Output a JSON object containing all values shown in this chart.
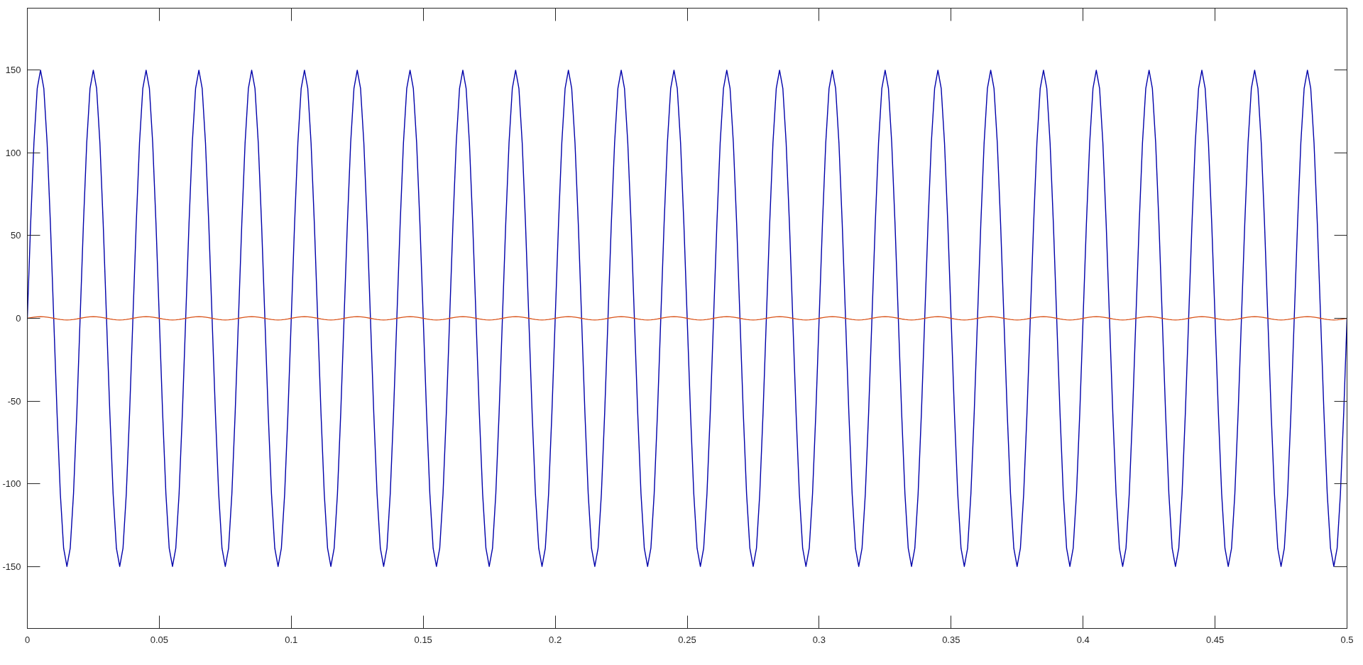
{
  "chart_data": {
    "type": "line",
    "xlim": [
      0,
      0.5
    ],
    "xticks": [
      0,
      0.05,
      0.1,
      0.15,
      0.2,
      0.25,
      0.3,
      0.35,
      0.4,
      0.45,
      0.5
    ],
    "ylim": [
      -187.5,
      187.5
    ],
    "yticks": [
      -150,
      -100,
      -50,
      0,
      50,
      100,
      150
    ],
    "grid": false,
    "line_style": "solid",
    "x": [
      0,
      0.00125,
      0.0025,
      0.00375,
      0.005,
      0.00625,
      0.0075,
      0.00875,
      0.01,
      0.01125,
      0.0125,
      0.01375,
      0.015,
      0.01625,
      0.0175,
      0.01875,
      0.02,
      0.02125,
      0.0225,
      0.02375,
      0.025,
      0.02625,
      0.0275,
      0.02875,
      0.03,
      0.03125,
      0.0325,
      0.03375,
      0.035,
      0.03625,
      0.0375,
      0.03875,
      0.04,
      0.04125,
      0.0425,
      0.04375,
      0.045,
      0.04625,
      0.0475,
      0.04875,
      0.05,
      0.05125,
      0.0525,
      0.05375,
      0.055,
      0.05625,
      0.0575,
      0.05875,
      0.06,
      0.06125,
      0.0625,
      0.06375,
      0.065,
      0.06625,
      0.0675,
      0.06875,
      0.07,
      0.07125,
      0.0725,
      0.07375,
      0.075,
      0.07625,
      0.0775,
      0.07875,
      0.08,
      0.08125,
      0.0825,
      0.08375,
      0.085,
      0.08625,
      0.0875,
      0.08875,
      0.09,
      0.09125,
      0.0925,
      0.09375,
      0.095,
      0.09625,
      0.0975,
      0.09875,
      0.1,
      0.10125,
      0.1025,
      0.10375,
      0.105,
      0.10625,
      0.1075,
      0.10875,
      0.11,
      0.11125,
      0.1125,
      0.11375,
      0.115,
      0.11625,
      0.1175,
      0.11875,
      0.12,
      0.12125,
      0.1225,
      0.12375,
      0.125,
      0.12625,
      0.1275,
      0.12875,
      0.13,
      0.13125,
      0.1325,
      0.13375,
      0.135,
      0.13625,
      0.1375,
      0.13875,
      0.14,
      0.14125,
      0.1425,
      0.14375,
      0.145,
      0.14625,
      0.1475,
      0.14875,
      0.15,
      0.15125,
      0.1525,
      0.15375,
      0.155,
      0.15625,
      0.1575,
      0.15875,
      0.16,
      0.16125,
      0.1625,
      0.16375,
      0.165,
      0.16625,
      0.1675,
      0.16875,
      0.17,
      0.17125,
      0.1725,
      0.17375,
      0.175,
      0.17625,
      0.1775,
      0.17875,
      0.18,
      0.18125,
      0.1825,
      0.18375,
      0.185,
      0.18625,
      0.1875,
      0.18875,
      0.19,
      0.19125,
      0.1925,
      0.19375,
      0.195,
      0.19625,
      0.1975,
      0.19875,
      0.2,
      0.20125,
      0.2025,
      0.20375,
      0.205,
      0.20625,
      0.2075,
      0.20875,
      0.21,
      0.21125,
      0.2125,
      0.21375,
      0.215,
      0.21625,
      0.2175,
      0.21875,
      0.22,
      0.22125,
      0.2225,
      0.22375,
      0.225,
      0.22625,
      0.2275,
      0.22875,
      0.23,
      0.23125,
      0.2325,
      0.23375,
      0.235,
      0.23625,
      0.2375,
      0.23875,
      0.24,
      0.24125,
      0.2425,
      0.24375,
      0.245,
      0.24625,
      0.2475,
      0.24875,
      0.25,
      0.25125,
      0.2525,
      0.25375,
      0.255,
      0.25625,
      0.2575,
      0.25875,
      0.26,
      0.26125,
      0.2625,
      0.26375,
      0.265,
      0.26625,
      0.2675,
      0.26875,
      0.27,
      0.27125,
      0.2725,
      0.27375,
      0.275,
      0.27625,
      0.2775,
      0.27875,
      0.28,
      0.28125,
      0.2825,
      0.28375,
      0.285,
      0.28625,
      0.2875,
      0.28875,
      0.29,
      0.29125,
      0.2925,
      0.29375,
      0.295,
      0.29625,
      0.2975,
      0.29875,
      0.3,
      0.30125,
      0.3025,
      0.30375,
      0.305,
      0.30625,
      0.3075,
      0.30875,
      0.31,
      0.31125,
      0.3125,
      0.31375,
      0.315,
      0.31625,
      0.3175,
      0.31875,
      0.32,
      0.32125,
      0.3225,
      0.32375,
      0.325,
      0.32625,
      0.3275,
      0.32875,
      0.33,
      0.33125,
      0.3325,
      0.33375,
      0.335,
      0.33625,
      0.3375,
      0.33875,
      0.34,
      0.34125,
      0.3425,
      0.34375,
      0.345,
      0.34625,
      0.3475,
      0.34875,
      0.35,
      0.35125,
      0.3525,
      0.35375,
      0.355,
      0.35625,
      0.3575,
      0.35875,
      0.36,
      0.36125,
      0.3625,
      0.36375,
      0.365,
      0.36625,
      0.3675,
      0.36875,
      0.37,
      0.37125,
      0.3725,
      0.37375,
      0.375,
      0.37625,
      0.3775,
      0.37875,
      0.38,
      0.38125,
      0.3825,
      0.38375,
      0.385,
      0.38625,
      0.3875,
      0.38875,
      0.39,
      0.39125,
      0.3925,
      0.39375,
      0.395,
      0.39625,
      0.3975,
      0.39875,
      0.4,
      0.40125,
      0.4025,
      0.40375,
      0.405,
      0.40625,
      0.4075,
      0.40875,
      0.41,
      0.41125,
      0.4125,
      0.41375,
      0.415,
      0.41625,
      0.4175,
      0.41875,
      0.42,
      0.42125,
      0.4225,
      0.42375,
      0.425,
      0.42625,
      0.4275,
      0.42875,
      0.43,
      0.43125,
      0.4325,
      0.43375,
      0.435,
      0.43625,
      0.4375,
      0.43875,
      0.44,
      0.44125,
      0.4425,
      0.44375,
      0.445,
      0.44625,
      0.4475,
      0.44875,
      0.45,
      0.45125,
      0.4525,
      0.45375,
      0.455,
      0.45625,
      0.4575,
      0.45875,
      0.46,
      0.46125,
      0.4625,
      0.46375,
      0.465,
      0.46625,
      0.4675,
      0.46875,
      0.47,
      0.47125,
      0.4725,
      0.47375,
      0.475,
      0.47625,
      0.4775,
      0.47875,
      0.48,
      0.48125,
      0.4825,
      0.48375,
      0.485,
      0.48625,
      0.4875,
      0.48875,
      0.49,
      0.49125,
      0.4925,
      0.49375,
      0.495,
      0.49625,
      0.4975,
      0.49875,
      0.5
    ],
    "series": [
      {
        "color": "#0000aa",
        "values": [
          0,
          57,
          106,
          139,
          150,
          139,
          106,
          57,
          0,
          -57,
          -106,
          -139,
          -150,
          -139,
          -106,
          -57,
          0,
          57,
          106,
          139,
          150,
          139,
          106,
          57,
          0,
          -57,
          -106,
          -139,
          -150,
          -139,
          -106,
          -57,
          0,
          57,
          106,
          139,
          150,
          139,
          106,
          57,
          0,
          -57,
          -106,
          -139,
          -150,
          -139,
          -106,
          -57,
          0,
          57,
          106,
          139,
          150,
          139,
          106,
          57,
          0,
          -57,
          -106,
          -139,
          -150,
          -139,
          -106,
          -57,
          0,
          57,
          106,
          139,
          150,
          139,
          106,
          57,
          0,
          -57,
          -106,
          -139,
          -150,
          -139,
          -106,
          -57,
          0,
          57,
          106,
          139,
          150,
          139,
          106,
          57,
          0,
          -57,
          -106,
          -139,
          -150,
          -139,
          -106,
          -57,
          0,
          57,
          106,
          139,
          150,
          139,
          106,
          57,
          0,
          -57,
          -106,
          -139,
          -150,
          -139,
          -106,
          -57,
          0,
          57,
          106,
          139,
          150,
          139,
          106,
          57,
          0,
          -57,
          -106,
          -139,
          -150,
          -139,
          -106,
          -57,
          0,
          57,
          106,
          139,
          150,
          139,
          106,
          57,
          0,
          -57,
          -106,
          -139,
          -150,
          -139,
          -106,
          -57,
          0,
          57,
          106,
          139,
          150,
          139,
          106,
          57,
          0,
          -57,
          -106,
          -139,
          -150,
          -139,
          -106,
          -57,
          0,
          57,
          106,
          139,
          150,
          139,
          106,
          57,
          0,
          -57,
          -106,
          -139,
          -150,
          -139,
          -106,
          -57,
          0,
          57,
          106,
          139,
          150,
          139,
          106,
          57,
          0,
          -57,
          -106,
          -139,
          -150,
          -139,
          -106,
          -57,
          0,
          57,
          106,
          139,
          150,
          139,
          106,
          57,
          0,
          -57,
          -106,
          -139,
          -150,
          -139,
          -106,
          -57,
          0,
          57,
          106,
          139,
          150,
          139,
          106,
          57,
          0,
          -57,
          -106,
          -139,
          -150,
          -139,
          -106,
          -57,
          0,
          57,
          106,
          139,
          150,
          139,
          106,
          57,
          0,
          -57,
          -106,
          -139,
          -150,
          -139,
          -106,
          -57,
          0,
          57,
          106,
          139,
          150,
          139,
          106,
          57,
          0,
          -57,
          -106,
          -139,
          -150,
          -139,
          -106,
          -57,
          0,
          57,
          106,
          139,
          150,
          139,
          106,
          57,
          0,
          -57,
          -106,
          -139,
          -150,
          -139,
          -106,
          -57,
          0,
          57,
          106,
          139,
          150,
          139,
          106,
          57,
          0,
          -57,
          -106,
          -139,
          -150,
          -139,
          -106,
          -57,
          0,
          57,
          106,
          139,
          150,
          139,
          106,
          57,
          0,
          -57,
          -106,
          -139,
          -150,
          -139,
          -106,
          -57,
          0,
          57,
          106,
          139,
          150,
          139,
          106,
          57,
          0,
          -57,
          -106,
          -139,
          -150,
          -139,
          -106,
          -57,
          0,
          57,
          106,
          139,
          150,
          139,
          106,
          57,
          0,
          -57,
          -106,
          -139,
          -150,
          -139,
          -106,
          -57,
          0,
          57,
          106,
          139,
          150,
          139,
          106,
          57,
          0,
          -57,
          -106,
          -139,
          -150,
          -139,
          -106,
          -57,
          0,
          57,
          106,
          139,
          150,
          139,
          106,
          57,
          0,
          -57,
          -106,
          -139,
          -150,
          -139,
          -106,
          -57,
          0,
          57,
          106,
          139,
          150,
          139,
          106,
          57,
          0,
          -57,
          -106,
          -139,
          -150,
          -139,
          -106,
          -57,
          0,
          57,
          106,
          139,
          150,
          139,
          106,
          57,
          0,
          -57,
          -106,
          -139,
          -150,
          -139,
          -106,
          -57,
          0
        ]
      },
      {
        "color": "#d95319",
        "values": [
          0,
          0.4,
          0.7,
          0.9,
          1,
          0.9,
          0.7,
          0.4,
          0,
          -0.4,
          -0.7,
          -0.9,
          -1,
          -0.9,
          -0.7,
          -0.4,
          0,
          0.4,
          0.7,
          0.9,
          1,
          0.9,
          0.7,
          0.4,
          0,
          -0.4,
          -0.7,
          -0.9,
          -1,
          -0.9,
          -0.7,
          -0.4,
          0,
          0.4,
          0.7,
          0.9,
          1,
          0.9,
          0.7,
          0.4,
          0,
          -0.4,
          -0.7,
          -0.9,
          -1,
          -0.9,
          -0.7,
          -0.4,
          0,
          0.4,
          0.7,
          0.9,
          1,
          0.9,
          0.7,
          0.4,
          0,
          -0.4,
          -0.7,
          -0.9,
          -1,
          -0.9,
          -0.7,
          -0.4,
          0,
          0.4,
          0.7,
          0.9,
          1,
          0.9,
          0.7,
          0.4,
          0,
          -0.4,
          -0.7,
          -0.9,
          -1,
          -0.9,
          -0.7,
          -0.4,
          0,
          0.4,
          0.7,
          0.9,
          1,
          0.9,
          0.7,
          0.4,
          0,
          -0.4,
          -0.7,
          -0.9,
          -1,
          -0.9,
          -0.7,
          -0.4,
          0,
          0.4,
          0.7,
          0.9,
          1,
          0.9,
          0.7,
          0.4,
          0,
          -0.4,
          -0.7,
          -0.9,
          -1,
          -0.9,
          -0.7,
          -0.4,
          0,
          0.4,
          0.7,
          0.9,
          1,
          0.9,
          0.7,
          0.4,
          0,
          -0.4,
          -0.7,
          -0.9,
          -1,
          -0.9,
          -0.7,
          -0.4,
          0,
          0.4,
          0.7,
          0.9,
          1,
          0.9,
          0.7,
          0.4,
          0,
          -0.4,
          -0.7,
          -0.9,
          -1,
          -0.9,
          -0.7,
          -0.4,
          0,
          0.4,
          0.7,
          0.9,
          1,
          0.9,
          0.7,
          0.4,
          0,
          -0.4,
          -0.7,
          -0.9,
          -1,
          -0.9,
          -0.7,
          -0.4,
          0,
          0.4,
          0.7,
          0.9,
          1,
          0.9,
          0.7,
          0.4,
          0,
          -0.4,
          -0.7,
          -0.9,
          -1,
          -0.9,
          -0.7,
          -0.4,
          0,
          0.4,
          0.7,
          0.9,
          1,
          0.9,
          0.7,
          0.4,
          0,
          -0.4,
          -0.7,
          -0.9,
          -1,
          -0.9,
          -0.7,
          -0.4,
          0,
          0.4,
          0.7,
          0.9,
          1,
          0.9,
          0.7,
          0.4,
          0,
          -0.4,
          -0.7,
          -0.9,
          -1,
          -0.9,
          -0.7,
          -0.4,
          0,
          0.4,
          0.7,
          0.9,
          1,
          0.9,
          0.7,
          0.4,
          0,
          -0.4,
          -0.7,
          -0.9,
          -1,
          -0.9,
          -0.7,
          -0.4,
          0,
          0.4,
          0.7,
          0.9,
          1,
          0.9,
          0.7,
          0.4,
          0,
          -0.4,
          -0.7,
          -0.9,
          -1,
          -0.9,
          -0.7,
          -0.4,
          0,
          0.4,
          0.7,
          0.9,
          1,
          0.9,
          0.7,
          0.4,
          0,
          -0.4,
          -0.7,
          -0.9,
          -1,
          -0.9,
          -0.7,
          -0.4,
          0,
          0.4,
          0.7,
          0.9,
          1,
          0.9,
          0.7,
          0.4,
          0,
          -0.4,
          -0.7,
          -0.9,
          -1,
          -0.9,
          -0.7,
          -0.4,
          0,
          0.4,
          0.7,
          0.9,
          1,
          0.9,
          0.7,
          0.4,
          0,
          -0.4,
          -0.7,
          -0.9,
          -1,
          -0.9,
          -0.7,
          -0.4,
          0,
          0.4,
          0.7,
          0.9,
          1,
          0.9,
          0.7,
          0.4,
          0,
          -0.4,
          -0.7,
          -0.9,
          -1,
          -0.9,
          -0.7,
          -0.4,
          0,
          0.4,
          0.7,
          0.9,
          1,
          0.9,
          0.7,
          0.4,
          0,
          -0.4,
          -0.7,
          -0.9,
          -1,
          -0.9,
          -0.7,
          -0.4,
          0,
          0.4,
          0.7,
          0.9,
          1,
          0.9,
          0.7,
          0.4,
          0,
          -0.4,
          -0.7,
          -0.9,
          -1,
          -0.9,
          -0.7,
          -0.4,
          0,
          0.4,
          0.7,
          0.9,
          1,
          0.9,
          0.7,
          0.4,
          0,
          -0.4,
          -0.7,
          -0.9,
          -1,
          -0.9,
          -0.7,
          -0.4,
          0,
          0.4,
          0.7,
          0.9,
          1,
          0.9,
          0.7,
          0.4,
          0,
          -0.4,
          -0.7,
          -0.9,
          -1,
          -0.9,
          -0.7,
          -0.4,
          0,
          0.4,
          0.7,
          0.9,
          1,
          0.9,
          0.7,
          0.4,
          0,
          -0.4,
          -0.7,
          -0.9,
          -1,
          -0.9,
          -0.7,
          -0.4,
          0,
          0.4,
          0.7,
          0.9,
          1,
          0.9,
          0.7,
          0.4,
          0,
          -0.4,
          -0.7,
          -0.9,
          -1,
          -0.9,
          -0.7,
          -0.4,
          0
        ]
      }
    ]
  }
}
